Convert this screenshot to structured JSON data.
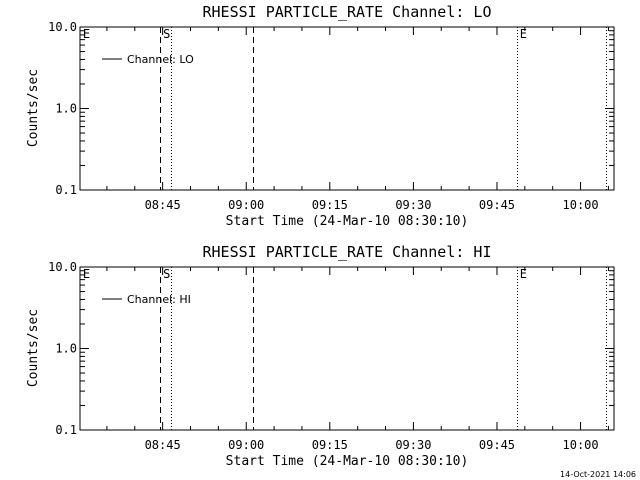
{
  "footer": {
    "timestamp": "14-Oct-2021 14:06"
  },
  "chart_data": [
    {
      "type": "line",
      "title": "RHESSI PARTICLE_RATE Channel: LO",
      "xlabel": "Start Time (24-Mar-10 08:30:10)",
      "ylabel": "Counts/sec",
      "y_scale": "log",
      "ylim": [
        0.1,
        10.0
      ],
      "y_ticks": [
        {
          "value": 0.1,
          "label": "0.1"
        },
        {
          "value": 1.0,
          "label": "1.0"
        },
        {
          "value": 10.0,
          "label": "10.0"
        }
      ],
      "xlim_minutes": [
        30.17,
        126.0
      ],
      "x_ticks": [
        {
          "minute": 45,
          "label": "08:45"
        },
        {
          "minute": 60,
          "label": "09:00"
        },
        {
          "minute": 75,
          "label": "09:15"
        },
        {
          "minute": 90,
          "label": "09:30"
        },
        {
          "minute": 105,
          "label": "09:45"
        },
        {
          "minute": 120,
          "label": "10:00"
        }
      ],
      "legend": [
        {
          "label": "Channel: LO",
          "style": "solid"
        }
      ],
      "legend_position": "top-left",
      "series": [
        {
          "name": "Channel: LO",
          "values": []
        }
      ],
      "event_lines": [
        {
          "minute": 44.5,
          "style": "dashed"
        },
        {
          "minute": 46.5,
          "style": "dotted"
        },
        {
          "minute": 61.3,
          "style": "dashed"
        },
        {
          "minute": 108.6,
          "style": "dotted"
        },
        {
          "minute": 124.6,
          "style": "dotted"
        }
      ],
      "markers": [
        {
          "minute": 30.5,
          "label": "E"
        },
        {
          "minute": 44.9,
          "label": "S"
        },
        {
          "minute": 108.9,
          "label": "E"
        }
      ]
    },
    {
      "type": "line",
      "title": "RHESSI PARTICLE_RATE Channel: HI",
      "xlabel": "Start Time (24-Mar-10 08:30:10)",
      "ylabel": "Counts/sec",
      "y_scale": "log",
      "ylim": [
        0.1,
        10.0
      ],
      "y_ticks": [
        {
          "value": 0.1,
          "label": "0.1"
        },
        {
          "value": 1.0,
          "label": "1.0"
        },
        {
          "value": 10.0,
          "label": "10.0"
        }
      ],
      "xlim_minutes": [
        30.17,
        126.0
      ],
      "x_ticks": [
        {
          "minute": 45,
          "label": "08:45"
        },
        {
          "minute": 60,
          "label": "09:00"
        },
        {
          "minute": 75,
          "label": "09:15"
        },
        {
          "minute": 90,
          "label": "09:30"
        },
        {
          "minute": 105,
          "label": "09:45"
        },
        {
          "minute": 120,
          "label": "10:00"
        }
      ],
      "legend": [
        {
          "label": "Channel: HI",
          "style": "solid"
        }
      ],
      "legend_position": "top-left",
      "series": [
        {
          "name": "Channel: HI",
          "values": []
        }
      ],
      "event_lines": [
        {
          "minute": 44.5,
          "style": "dashed"
        },
        {
          "minute": 46.5,
          "style": "dotted"
        },
        {
          "minute": 61.3,
          "style": "dashed"
        },
        {
          "minute": 108.6,
          "style": "dotted"
        },
        {
          "minute": 124.6,
          "style": "dotted"
        }
      ],
      "markers": [
        {
          "minute": 30.5,
          "label": "E"
        },
        {
          "minute": 44.9,
          "label": "S"
        },
        {
          "minute": 108.9,
          "label": "E"
        }
      ]
    }
  ]
}
